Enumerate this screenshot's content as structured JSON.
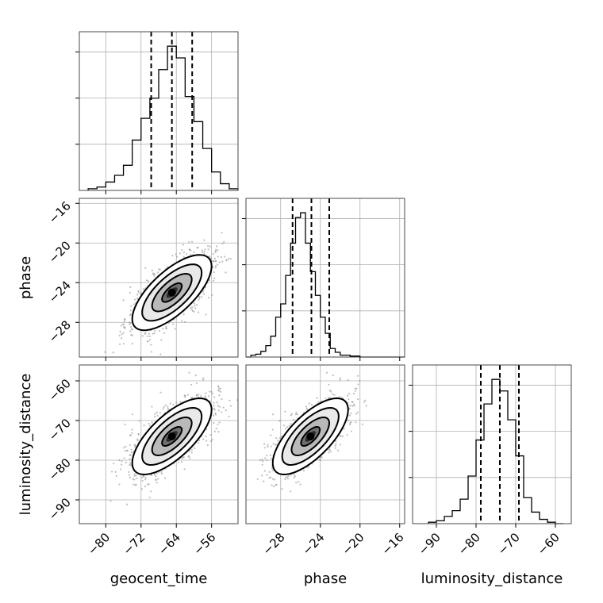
{
  "chart_data": {
    "type": "corner",
    "parameters": [
      {
        "name": "geocent_time",
        "range": [
          -86,
          -50
        ],
        "ticks": [
          -80,
          -72,
          -64,
          -56
        ],
        "tick_labels": [
          "−80",
          "−72",
          "−64",
          "−56"
        ],
        "mean": -65,
        "std": 4.5,
        "quantiles": [
          -69.7,
          -65.0,
          -60.4
        ],
        "hist": {
          "edges": [
            -84,
            -82,
            -80,
            -78,
            -76,
            -74,
            -72,
            -70,
            -68,
            -66,
            -64,
            -62,
            -60,
            -58,
            -56,
            -54,
            -52,
            -50
          ],
          "counts": [
            1,
            2,
            5,
            9,
            15,
            30,
            43,
            55,
            72,
            86,
            79,
            56,
            41,
            25,
            11,
            4,
            1
          ]
        }
      },
      {
        "name": "phase",
        "range": [
          -31.5,
          -15.5
        ],
        "ticks": [
          -28,
          -24,
          -20,
          -16
        ],
        "tick_labels": [
          "−28",
          "−24",
          "−20",
          "−16"
        ],
        "mean": -25,
        "std": 1.9,
        "quantiles": [
          -26.8,
          -24.9,
          -23.1
        ],
        "hist": {
          "edges": [
            -31.5,
            -31,
            -30.5,
            -30,
            -29.5,
            -29,
            -28.5,
            -28,
            -27.5,
            -27,
            -26.5,
            -26,
            -25.5,
            -25,
            -24.5,
            -24,
            -23.5,
            -23,
            -22.5,
            -22,
            -21.5,
            -21,
            -20.5,
            -20,
            -19.5,
            -19,
            -18.5,
            -18,
            -17.5,
            -17,
            -16.5,
            -16,
            -15.5
          ],
          "counts": [
            0,
            2,
            3,
            6,
            12,
            22,
            42,
            56,
            86,
            120,
            147,
            152,
            120,
            90,
            65,
            42,
            25,
            9,
            5,
            2,
            2,
            1,
            1,
            0,
            0,
            0,
            0,
            0,
            0,
            0,
            0,
            0
          ]
        }
      },
      {
        "name": "luminosity_distance",
        "range": [
          -96,
          -56
        ],
        "ticks": [
          -90,
          -80,
          -70,
          -60
        ],
        "tick_labels": [
          "−90",
          "−80",
          "−70",
          "−60"
        ],
        "mean": -74,
        "std": 4.8,
        "quantiles": [
          -78.8,
          -74.0,
          -69.2
        ],
        "hist": {
          "edges": [
            -92,
            -90,
            -88,
            -86,
            -84,
            -82,
            -80,
            -78,
            -76,
            -74,
            -72,
            -70,
            -68,
            -66,
            -64,
            -62,
            -60,
            -58
          ],
          "counts": [
            1,
            2,
            5,
            9,
            17,
            33,
            58,
            83,
            100,
            92,
            72,
            47,
            18,
            8,
            3,
            1,
            0
          ]
        }
      }
    ],
    "pairs": [
      {
        "x": 0,
        "y": 1,
        "correlation": 0.7
      },
      {
        "x": 0,
        "y": 2,
        "correlation": 0.7
      },
      {
        "x": 1,
        "y": 2,
        "correlation": 0.7
      }
    ],
    "contour_levels_sigma": [
      0.5,
      1.0,
      1.5,
      2.0
    ],
    "grid": true,
    "colors": {
      "line": "#000000",
      "grid": "#b0b0b0",
      "scatter": "#8a8a8a"
    }
  }
}
